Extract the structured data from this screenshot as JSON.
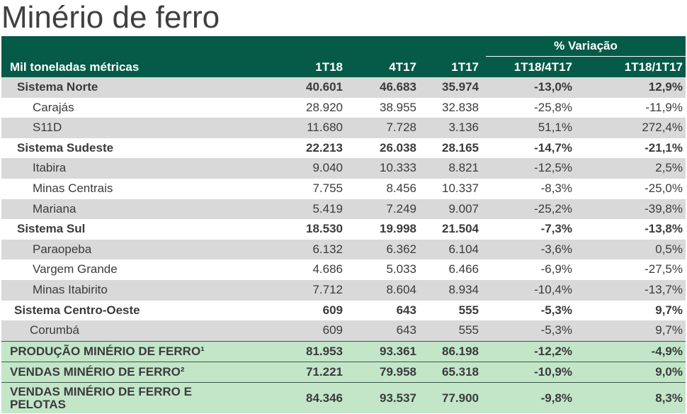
{
  "title": "Minério de ferro",
  "header": {
    "label": "Mil toneladas métricas",
    "variacao": "% Variação",
    "cols": [
      "1T18",
      "4T17",
      "1T17",
      "1T18/4T17",
      "1T18/1T17"
    ]
  },
  "rows": [
    {
      "name": "Sistema Norte",
      "v": [
        "40.601",
        "46.683",
        "35.974",
        "-13,0%",
        "12,9%"
      ]
    },
    {
      "name": "Carajás",
      "v": [
        "28.920",
        "38.955",
        "32.838",
        "-25,8%",
        "-11,9%"
      ]
    },
    {
      "name": "S11D",
      "v": [
        "11.680",
        "7.728",
        "3.136",
        "51,1%",
        "272,4%"
      ]
    },
    {
      "name": "Sistema Sudeste",
      "v": [
        "22.213",
        "26.038",
        "28.165",
        "-14,7%",
        "-21,1%"
      ]
    },
    {
      "name": "Itabira",
      "v": [
        "9.040",
        "10.333",
        "8.821",
        "-12,5%",
        "2,5%"
      ]
    },
    {
      "name": "Minas Centrais",
      "v": [
        "7.755",
        "8.456",
        "10.337",
        "-8,3%",
        "-25,0%"
      ]
    },
    {
      "name": "Mariana",
      "v": [
        "5.419",
        "7.249",
        "9.007",
        "-25,2%",
        "-39,8%"
      ]
    },
    {
      "name": "Sistema Sul",
      "v": [
        "18.530",
        "19.998",
        "21.504",
        "-7,3%",
        "-13,8%"
      ]
    },
    {
      "name": "Paraopeba",
      "v": [
        "6.132",
        "6.362",
        "6.104",
        "-3,6%",
        "0,5%"
      ]
    },
    {
      "name": "Vargem Grande",
      "v": [
        "4.686",
        "5.033",
        "6.466",
        "-6,9%",
        "-27,5%"
      ]
    },
    {
      "name": "Minas Itabirito",
      "v": [
        "7.712",
        "8.604",
        "8.934",
        "-10,4%",
        "-13,7%"
      ]
    },
    {
      "name": "Sistema Centro-Oeste",
      "v": [
        "609",
        "643",
        "555",
        "-5,3%",
        "9,7%"
      ]
    },
    {
      "name": "Corumbá",
      "v": [
        "609",
        "643",
        "555",
        "-5,3%",
        "9,7%"
      ]
    }
  ],
  "totals": [
    {
      "name": "PRODUÇÃO MINÉRIO DE FERRO¹",
      "v": [
        "81.953",
        "93.361",
        "86.198",
        "-12,2%",
        "-4,9%"
      ]
    },
    {
      "name": "VENDAS MINÉRIO DE FERRO²",
      "v": [
        "71.221",
        "79.958",
        "65.318",
        "-10,9%",
        "9,0%"
      ]
    },
    {
      "name": "VENDAS MINÉRIO DE FERRO E PELOTAS",
      "v": [
        "84.346",
        "93.537",
        "77.900",
        "-9,8%",
        "8,3%"
      ]
    }
  ],
  "colors": {
    "header_bg": "#065a48",
    "row_gray": "#d9d9d9",
    "total_bg": "#c3e6c9"
  }
}
